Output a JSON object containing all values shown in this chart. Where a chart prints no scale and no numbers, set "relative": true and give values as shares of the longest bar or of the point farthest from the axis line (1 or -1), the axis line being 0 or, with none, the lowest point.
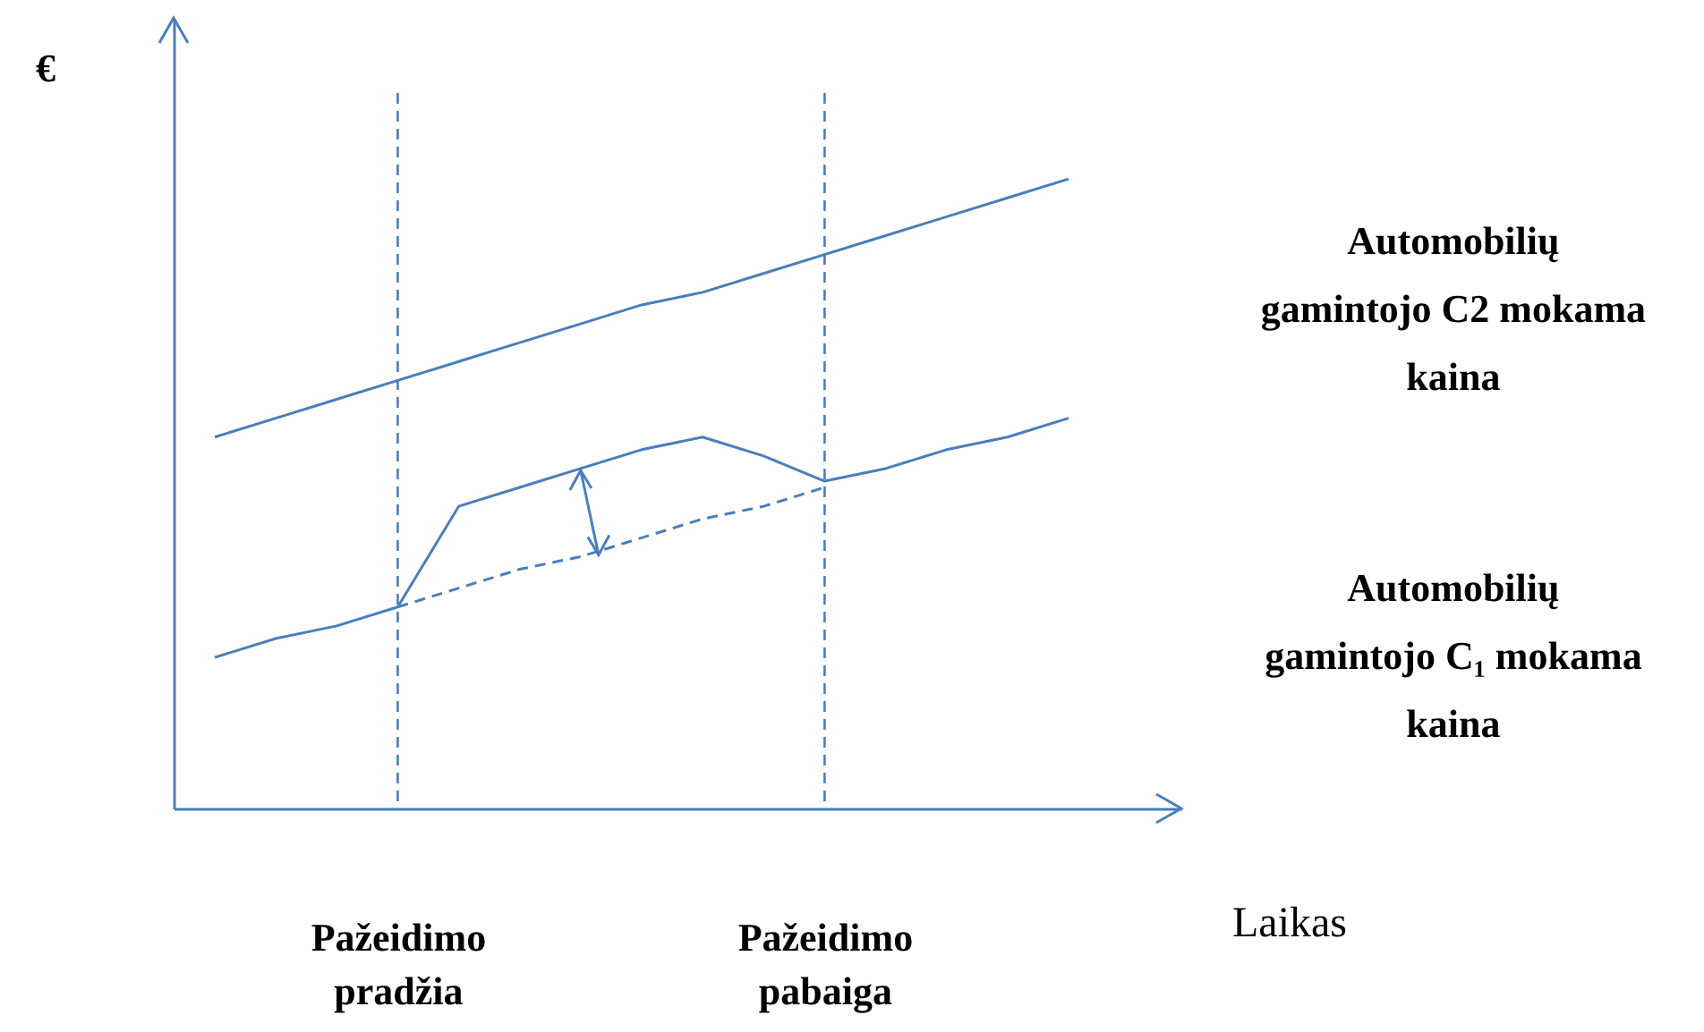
{
  "chart_data": {
    "type": "line",
    "relative": true,
    "ylabel": "€",
    "xlabel": "Laikas",
    "categories": [
      null,
      null,
      null,
      "Pažeidimo pradžia",
      null,
      null,
      null,
      null,
      null,
      null,
      "Pažeidimo pabaiga",
      null,
      null,
      null,
      null
    ],
    "series": [
      {
        "name": "Automobilių gamintojo C2 mokama kaina",
        "color": "#4a7ebb",
        "values": [
          0.59,
          0.62,
          0.65,
          0.68,
          0.71,
          0.74,
          0.77,
          0.8,
          0.82,
          0.85,
          0.88,
          0.91,
          0.94,
          0.97,
          1.0
        ]
      },
      {
        "name": "Automobilių gamintojo C₁ mokama kaina",
        "color": "#4a7ebb",
        "values": [
          0.24,
          0.27,
          0.29,
          0.32,
          0.48,
          0.51,
          0.54,
          0.57,
          0.59,
          0.56,
          0.52,
          0.54,
          0.57,
          0.59,
          0.62
        ]
      },
      {
        "color": "#4a7ebb",
        "line_style": "dashed",
        "values": [
          null,
          null,
          null,
          0.32,
          0.35,
          0.38,
          0.4,
          0.43,
          0.46,
          0.48,
          0.51,
          null,
          null,
          null,
          null
        ]
      }
    ],
    "ref_lines": [
      {
        "axis": "x",
        "value": "Pažeidimo pradžia",
        "color": "#4a7ebb",
        "line_style": "dashed"
      },
      {
        "axis": "x",
        "value": "Pažeidimo pabaiga",
        "color": "#4a7ebb",
        "line_style": "dashed"
      }
    ],
    "grid": false,
    "marker": "none",
    "line_style": "solid"
  }
}
